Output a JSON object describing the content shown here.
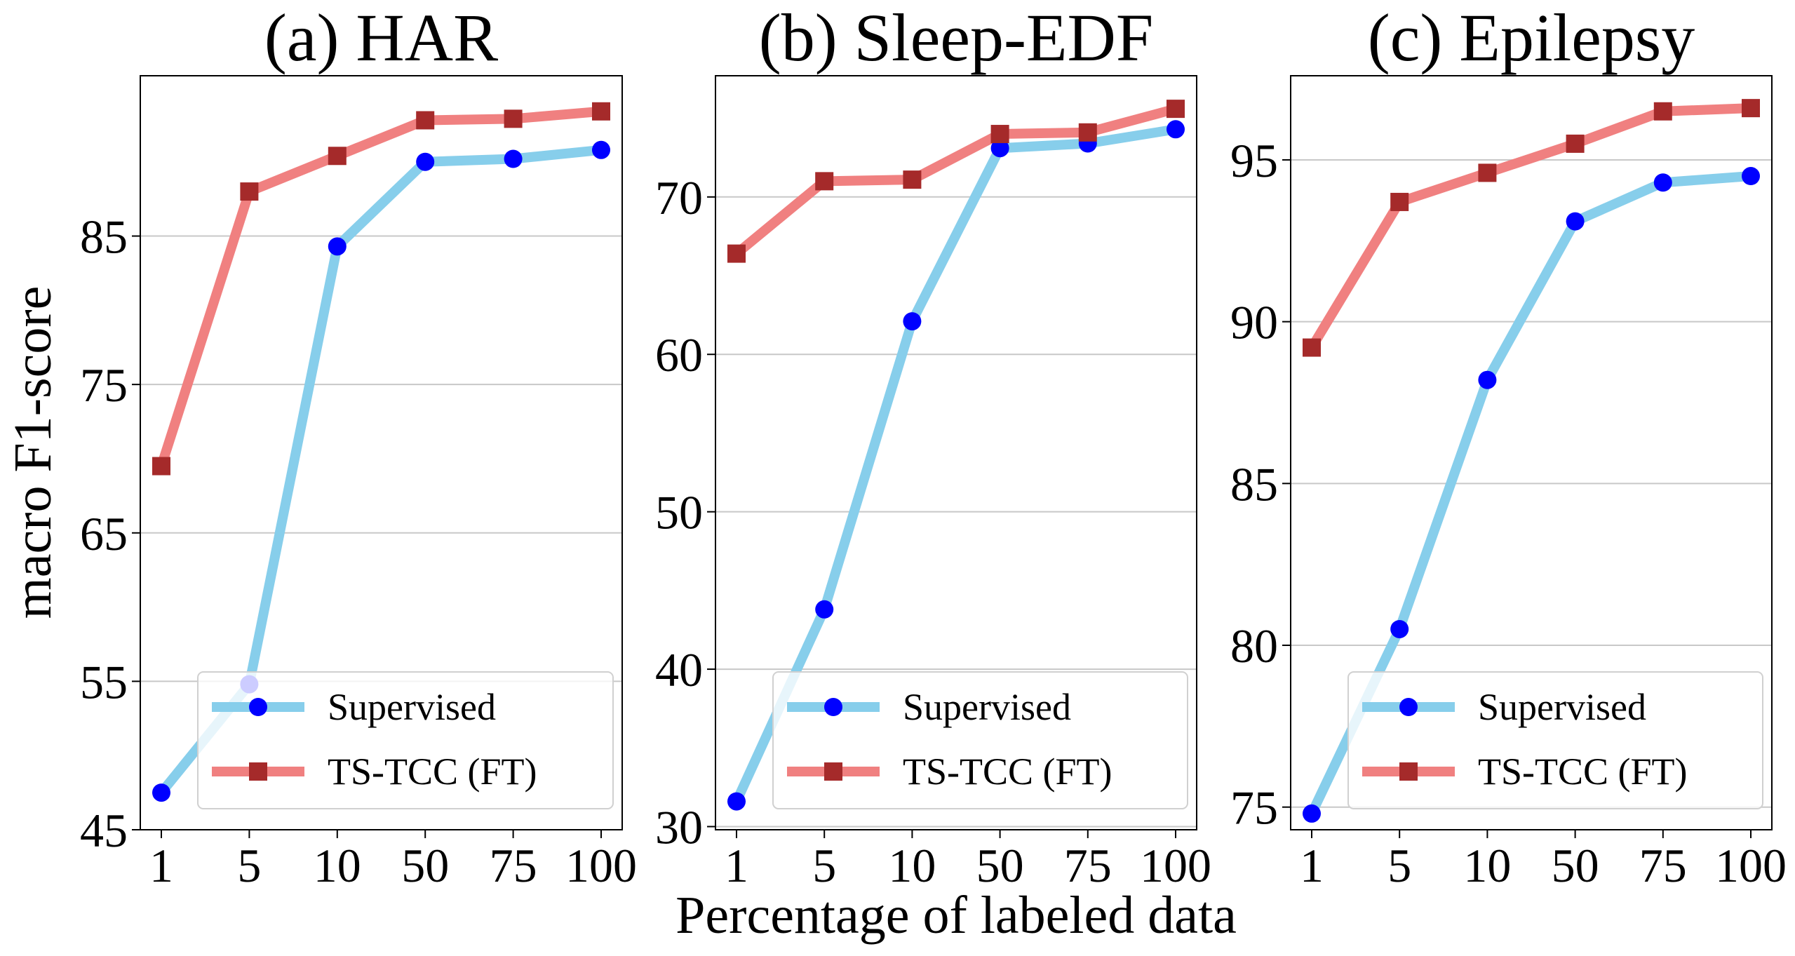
{
  "figure": {
    "ylabel": "macro F1-score",
    "xlabel": "Percentage of labeled data"
  },
  "colors": {
    "supervised_line": "#87ceeb",
    "supervised_marker": "#0000ff",
    "tstcc_line": "#f08080",
    "tstcc_marker": "#a52a2a",
    "grid": "#c8c8c8",
    "axes": "#000000"
  },
  "legend": [
    {
      "name": "Supervised",
      "marker": "circle"
    },
    {
      "name": "TS-TCC (FT)",
      "marker": "square"
    }
  ],
  "chart_data": [
    {
      "type": "line",
      "title": "(a) HAR",
      "categories": [
        "1",
        "5",
        "10",
        "50",
        "75",
        "100"
      ],
      "ylim": [
        45,
        95.8
      ],
      "yticks": [
        45,
        55,
        65,
        75,
        85
      ],
      "series": [
        {
          "name": "Supervised",
          "values": [
            47.5,
            54.8,
            84.3,
            90.0,
            90.2,
            90.8
          ]
        },
        {
          "name": "TS-TCC (FT)",
          "values": [
            69.5,
            88.0,
            90.4,
            92.8,
            92.9,
            93.4
          ]
        }
      ]
    },
    {
      "type": "line",
      "title": "(b) Sleep-EDF",
      "categories": [
        "1",
        "5",
        "10",
        "50",
        "75",
        "100"
      ],
      "ylim": [
        29.8,
        77.7
      ],
      "yticks": [
        30,
        40,
        50,
        60,
        70
      ],
      "series": [
        {
          "name": "Supervised",
          "values": [
            31.6,
            43.8,
            62.1,
            73.1,
            73.4,
            74.3
          ]
        },
        {
          "name": "TS-TCC (FT)",
          "values": [
            66.4,
            71.0,
            71.1,
            74.0,
            74.1,
            75.6
          ]
        }
      ]
    },
    {
      "type": "line",
      "title": "(c) Epilepsy",
      "categories": [
        "1",
        "5",
        "10",
        "50",
        "75",
        "100"
      ],
      "ylim": [
        74.3,
        97.6
      ],
      "yticks": [
        75,
        80,
        85,
        90,
        95
      ],
      "series": [
        {
          "name": "Supervised",
          "values": [
            74.8,
            80.5,
            88.2,
            93.1,
            94.3,
            94.5
          ]
        },
        {
          "name": "TS-TCC (FT)",
          "values": [
            89.2,
            93.7,
            94.6,
            95.5,
            96.5,
            96.6
          ]
        }
      ]
    }
  ]
}
